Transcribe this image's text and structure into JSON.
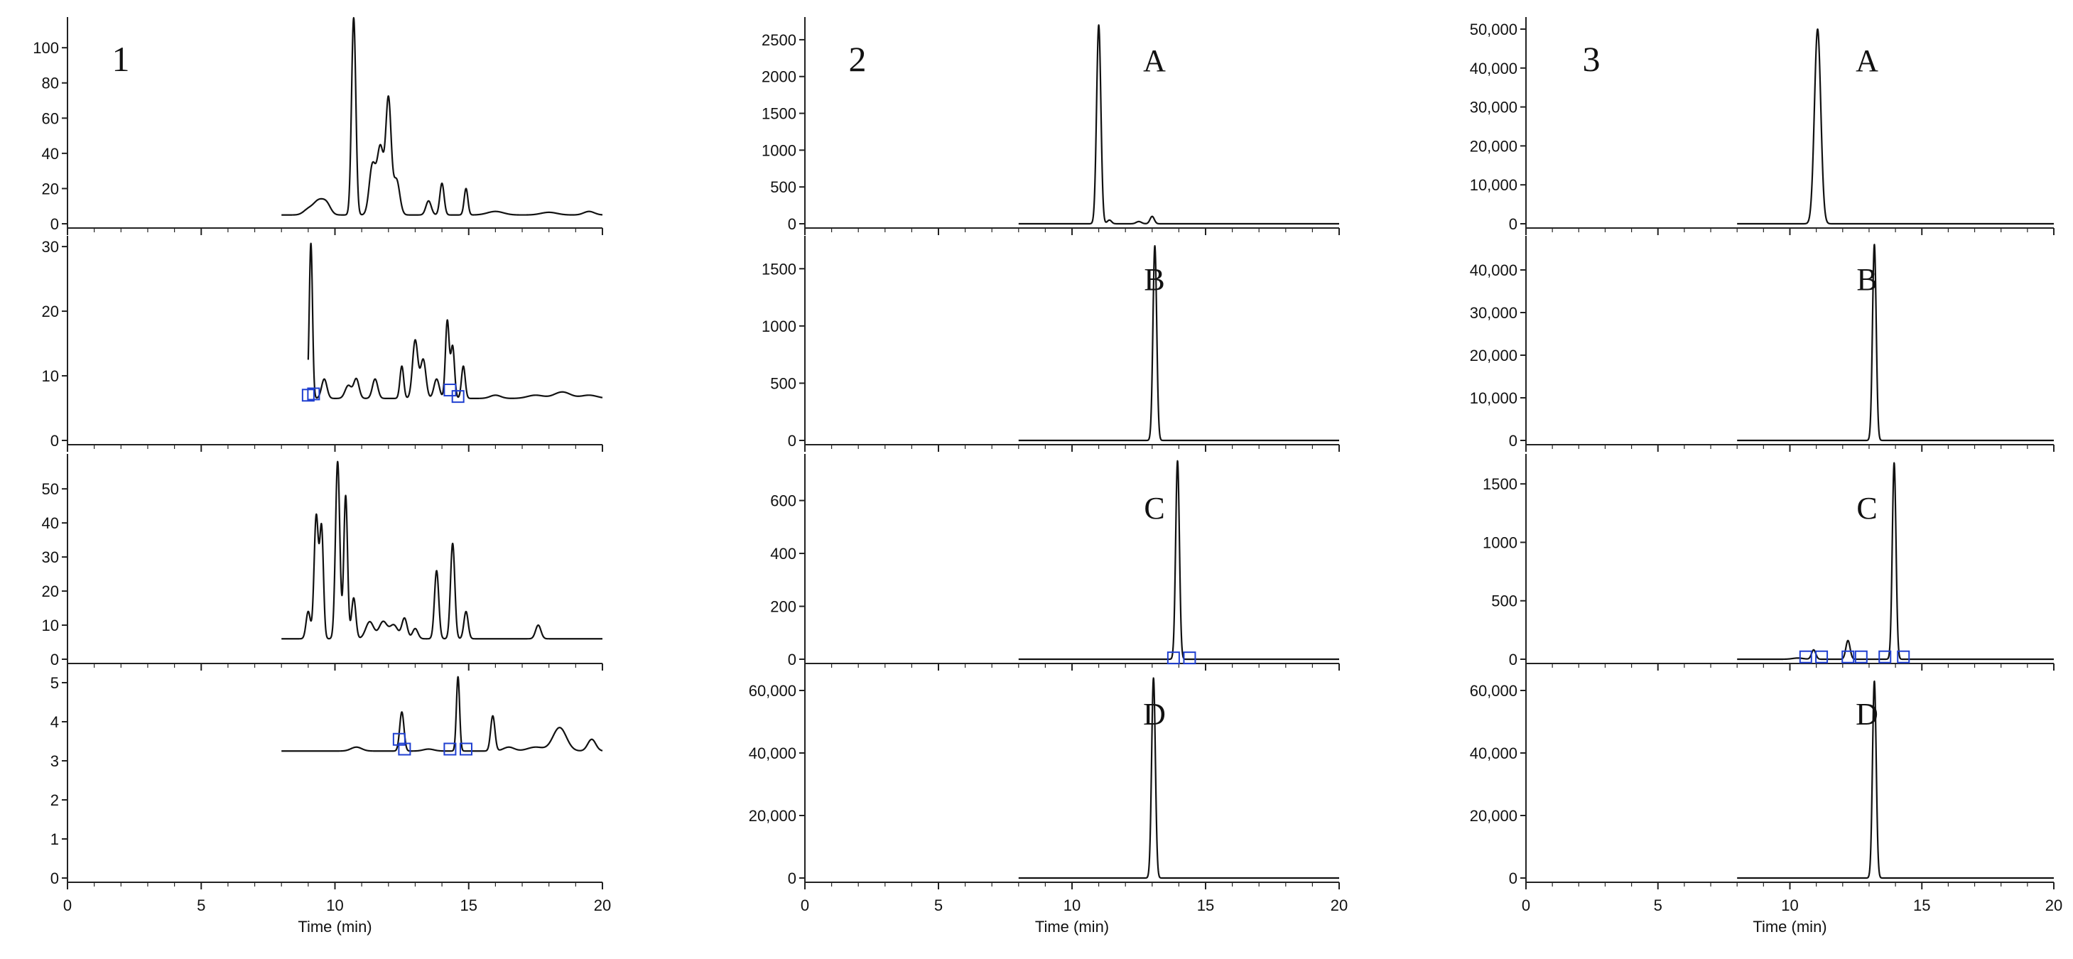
{
  "chart_data": [
    {
      "type": "line",
      "figure_label": "1",
      "xlabel": "Time (min)",
      "xlim": [
        0,
        20
      ],
      "x_ticks": [
        0,
        5,
        10,
        15,
        20
      ],
      "traces": [
        {
          "ylim": [
            0,
            115
          ],
          "y_ticks": [
            0,
            20,
            40,
            60,
            80,
            100
          ],
          "baseline": 5,
          "start": 8,
          "end": 20,
          "peaks": [
            [
              9.0,
              3,
              0.18
            ],
            [
              9.4,
              8,
              0.2
            ],
            [
              9.7,
              5,
              0.15
            ],
            [
              10.7,
              112,
              0.08
            ],
            [
              11.4,
              28,
              0.12
            ],
            [
              11.7,
              38,
              0.12
            ],
            [
              12.0,
              65,
              0.1
            ],
            [
              12.3,
              20,
              0.12
            ],
            [
              13.5,
              8,
              0.1
            ],
            [
              14.0,
              18,
              0.08
            ],
            [
              14.9,
              15,
              0.07
            ],
            [
              16.0,
              2,
              0.3
            ],
            [
              18.0,
              1.5,
              0.3
            ],
            [
              19.5,
              2,
              0.2
            ]
          ],
          "marks": []
        },
        {
          "ylim": [
            0,
            31
          ],
          "y_ticks": [
            0,
            10,
            20,
            30
          ],
          "baseline": 6.5,
          "start": 9,
          "end": 20,
          "peaks": [
            [
              9.1,
              24,
              0.06
            ],
            [
              9.6,
              3,
              0.1
            ],
            [
              10.5,
              2,
              0.12
            ],
            [
              10.8,
              3,
              0.1
            ],
            [
              11.5,
              3,
              0.1
            ],
            [
              12.5,
              5,
              0.07
            ],
            [
              13.0,
              9,
              0.1
            ],
            [
              13.3,
              6,
              0.1
            ],
            [
              13.8,
              3,
              0.1
            ],
            [
              14.2,
              12,
              0.07
            ],
            [
              14.4,
              8,
              0.07
            ],
            [
              14.8,
              5,
              0.07
            ],
            [
              16.0,
              0.5,
              0.2
            ],
            [
              17.5,
              0.5,
              0.3
            ],
            [
              18.5,
              1,
              0.3
            ],
            [
              19.5,
              0.5,
              0.3
            ]
          ],
          "marks": [
            [
              9.0,
              7.0
            ],
            [
              9.2,
              7.2
            ],
            [
              14.3,
              7.8
            ],
            [
              14.6,
              6.8
            ]
          ]
        },
        {
          "ylim": [
            0,
            59
          ],
          "y_ticks": [
            0,
            10,
            20,
            30,
            40,
            50
          ],
          "baseline": 6,
          "start": 8,
          "end": 20,
          "peaks": [
            [
              9.0,
              8,
              0.08
            ],
            [
              9.3,
              36,
              0.08
            ],
            [
              9.5,
              32,
              0.07
            ],
            [
              10.1,
              52,
              0.08
            ],
            [
              10.4,
              42,
              0.07
            ],
            [
              10.7,
              12,
              0.08
            ],
            [
              11.3,
              5,
              0.15
            ],
            [
              11.8,
              5,
              0.15
            ],
            [
              12.2,
              4,
              0.15
            ],
            [
              12.6,
              6,
              0.1
            ],
            [
              13.0,
              3,
              0.1
            ],
            [
              13.8,
              20,
              0.08
            ],
            [
              14.4,
              28,
              0.08
            ],
            [
              14.9,
              8,
              0.08
            ],
            [
              17.6,
              4,
              0.1
            ]
          ],
          "marks": []
        },
        {
          "ylim": [
            0,
            5.2
          ],
          "y_ticks": [
            0,
            1,
            2,
            3,
            4,
            5
          ],
          "baseline": 3.25,
          "start": 8,
          "end": 20,
          "peaks": [
            [
              10.8,
              0.1,
              0.2
            ],
            [
              12.5,
              1.0,
              0.08
            ],
            [
              13.5,
              0.05,
              0.2
            ],
            [
              14.6,
              1.9,
              0.06
            ],
            [
              15.9,
              0.9,
              0.08
            ],
            [
              16.5,
              0.1,
              0.2
            ],
            [
              17.5,
              0.1,
              0.3
            ],
            [
              18.4,
              0.6,
              0.25
            ],
            [
              19.6,
              0.3,
              0.15
            ]
          ],
          "marks": [
            [
              12.4,
              3.55
            ],
            [
              12.6,
              3.3
            ],
            [
              14.3,
              3.3
            ],
            [
              14.9,
              3.3
            ]
          ]
        }
      ]
    },
    {
      "type": "line",
      "figure_label": "2",
      "xlabel": "Time (min)",
      "xlim": [
        0,
        20
      ],
      "x_ticks": [
        0,
        5,
        10,
        15,
        20
      ],
      "traces": [
        {
          "label": "A",
          "ylim": [
            0,
            2750
          ],
          "y_ticks": [
            0,
            500,
            1000,
            1500,
            2000,
            2500
          ],
          "baseline": 0,
          "start": 8,
          "end": 20,
          "peaks": [
            [
              11.0,
              2700,
              0.08
            ],
            [
              11.4,
              50,
              0.08
            ],
            [
              12.5,
              30,
              0.1
            ],
            [
              13.0,
              100,
              0.08
            ]
          ],
          "marks": []
        },
        {
          "label": "B",
          "ylim": [
            0,
            1750
          ],
          "y_ticks": [
            0,
            500,
            1000,
            1500
          ],
          "baseline": 0,
          "start": 8,
          "end": 20,
          "peaks": [
            [
              13.1,
              1700,
              0.07
            ]
          ],
          "marks": []
        },
        {
          "label": "C",
          "ylim": [
            0,
            760
          ],
          "y_ticks": [
            0,
            200,
            400,
            600
          ],
          "baseline": 0,
          "start": 8,
          "end": 20,
          "peaks": [
            [
              13.95,
              750,
              0.07
            ]
          ],
          "marks": [
            [
              13.8,
              5
            ],
            [
              14.4,
              5
            ]
          ]
        },
        {
          "label": "D",
          "ylim": [
            0,
            65000
          ],
          "y_ticks": [
            0,
            20000,
            40000,
            60000
          ],
          "y_tick_labels": [
            "0",
            "20,000",
            "40,000",
            "60,000"
          ],
          "baseline": 0,
          "start": 8,
          "end": 20,
          "peaks": [
            [
              13.05,
              64000,
              0.07
            ]
          ],
          "marks": []
        }
      ]
    },
    {
      "type": "line",
      "figure_label": "3",
      "xlabel": "Time (min)",
      "xlim": [
        0,
        20
      ],
      "x_ticks": [
        0,
        5,
        10,
        15,
        20
      ],
      "traces": [
        {
          "label": "A",
          "ylim": [
            0,
            52000
          ],
          "y_ticks": [
            0,
            10000,
            20000,
            30000,
            40000,
            50000
          ],
          "y_tick_labels": [
            "0",
            "10,000",
            "20,000",
            "30,000",
            "40,000",
            "50,000"
          ],
          "baseline": 0,
          "start": 8,
          "end": 20,
          "peaks": [
            [
              11.05,
              50000,
              0.12
            ]
          ],
          "marks": []
        },
        {
          "label": "B",
          "ylim": [
            0,
            47000
          ],
          "y_ticks": [
            0,
            10000,
            20000,
            30000,
            40000
          ],
          "y_tick_labels": [
            "0",
            "10,000",
            "20,000",
            "30,000",
            "40,000"
          ],
          "baseline": 0,
          "start": 8,
          "end": 20,
          "peaks": [
            [
              13.2,
              46000,
              0.07
            ]
          ],
          "marks": []
        },
        {
          "label": "C",
          "ylim": [
            0,
            1720
          ],
          "y_ticks": [
            0,
            500,
            1000,
            1500
          ],
          "baseline": 0,
          "start": 8,
          "end": 20,
          "peaks": [
            [
              10.3,
              10,
              0.2
            ],
            [
              10.9,
              80,
              0.08
            ],
            [
              12.2,
              160,
              0.08
            ],
            [
              13.95,
              1680,
              0.07
            ]
          ],
          "marks": [
            [
              10.6,
              20
            ],
            [
              11.2,
              20
            ],
            [
              12.2,
              20
            ],
            [
              12.7,
              20
            ],
            [
              13.6,
              20
            ],
            [
              14.3,
              20
            ]
          ]
        },
        {
          "label": "D",
          "ylim": [
            0,
            65000
          ],
          "y_ticks": [
            0,
            20000,
            40000,
            60000
          ],
          "y_tick_labels": [
            "0",
            "20,000",
            "40,000",
            "60,000"
          ],
          "baseline": 0,
          "start": 8,
          "end": 20,
          "peaks": [
            [
              13.2,
              63000,
              0.07
            ]
          ],
          "marks": []
        }
      ]
    }
  ]
}
